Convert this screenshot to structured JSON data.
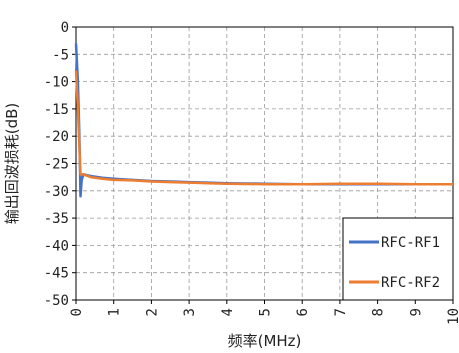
{
  "chart_data": {
    "type": "line",
    "title": "",
    "xlabel": "频率(MHz)",
    "ylabel": "输出回波损耗(dB)",
    "xlim": [
      0,
      10
    ],
    "ylim": [
      -50,
      0
    ],
    "xticks": [
      "0",
      "1",
      "2",
      "3",
      "4",
      "5",
      "6",
      "7",
      "8",
      "9",
      "10"
    ],
    "yticks": [
      "0",
      "-5",
      "-10",
      "-15",
      "-20",
      "-25",
      "-30",
      "-35",
      "-40",
      "-45",
      "-50"
    ],
    "grid": true,
    "legend_position": "bottom-right",
    "series": [
      {
        "name": "RFC-RF1",
        "color": "#4472C4",
        "points": [
          [
            0.0,
            -3.0
          ],
          [
            0.05,
            -10.0
          ],
          [
            0.09,
            -20.0
          ],
          [
            0.12,
            -31.0
          ],
          [
            0.15,
            -28.0
          ],
          [
            0.2,
            -27.0
          ],
          [
            0.4,
            -27.3
          ],
          [
            0.7,
            -27.6
          ],
          [
            1.0,
            -27.8
          ],
          [
            1.5,
            -28.0
          ],
          [
            2.0,
            -28.2
          ],
          [
            2.5,
            -28.3
          ],
          [
            3.0,
            -28.4
          ],
          [
            3.5,
            -28.5
          ],
          [
            4.0,
            -28.6
          ],
          [
            5.0,
            -28.7
          ],
          [
            6.0,
            -28.8
          ],
          [
            7.0,
            -28.8
          ],
          [
            8.0,
            -28.8
          ],
          [
            9.0,
            -28.8
          ],
          [
            10.0,
            -28.8
          ]
        ]
      },
      {
        "name": "RFC-RF2",
        "color": "#ED7D31",
        "points": [
          [
            0.0,
            -8.0
          ],
          [
            0.05,
            -15.0
          ],
          [
            0.09,
            -22.0
          ],
          [
            0.12,
            -27.0
          ],
          [
            0.2,
            -27.0
          ],
          [
            0.4,
            -27.5
          ],
          [
            0.7,
            -27.8
          ],
          [
            1.0,
            -28.0
          ],
          [
            1.5,
            -28.1
          ],
          [
            2.0,
            -28.3
          ],
          [
            2.5,
            -28.4
          ],
          [
            3.0,
            -28.5
          ],
          [
            3.5,
            -28.6
          ],
          [
            4.0,
            -28.7
          ],
          [
            5.0,
            -28.8
          ],
          [
            6.0,
            -28.8
          ],
          [
            7.0,
            -28.7
          ],
          [
            8.0,
            -28.7
          ],
          [
            9.0,
            -28.8
          ],
          [
            10.0,
            -28.8
          ]
        ]
      }
    ]
  }
}
